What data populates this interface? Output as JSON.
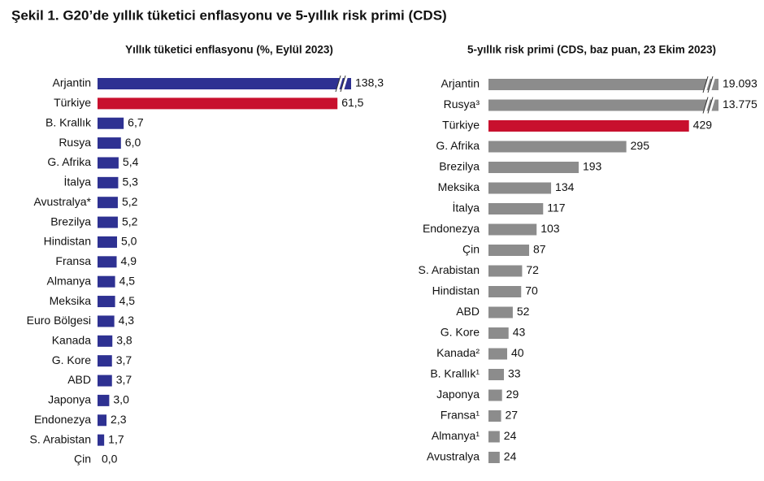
{
  "title": "Şekil 1. G20’de yıllık tüketici enflasyonu ve 5-yıllık risk primi (CDS)",
  "chart_data": [
    {
      "type": "bar",
      "orientation": "horizontal",
      "title": "Yıllık tüketici enflasyonu (%, Eylül 2023)",
      "categories": [
        "Arjantin",
        "Türkiye",
        "B. Krallık",
        "Rusya",
        "G. Afrika",
        "İtalya",
        "Avustralya*",
        "Brezilya",
        "Hindistan",
        "Fransa",
        "Almanya",
        "Meksika",
        "Euro Bölgesi",
        "Kanada",
        "G. Kore",
        "ABD",
        "Japonya",
        "Endonezya",
        "S. Arabistan",
        "Çin"
      ],
      "values": [
        138.3,
        61.5,
        6.7,
        6.0,
        5.4,
        5.3,
        5.2,
        5.2,
        5.0,
        4.9,
        4.5,
        4.5,
        4.3,
        3.8,
        3.7,
        3.7,
        3.0,
        2.3,
        1.7,
        0.0
      ],
      "value_labels": [
        "138,3",
        "61,5",
        "6,7",
        "6,0",
        "5,4",
        "5,3",
        "5,2",
        "5,2",
        "5,0",
        "4,9",
        "4,5",
        "4,5",
        "4,3",
        "3,8",
        "3,7",
        "3,7",
        "3,0",
        "2,3",
        "1,7",
        "0,0"
      ],
      "colors": [
        "#2e3192",
        "#c8102e",
        "#2e3192",
        "#2e3192",
        "#2e3192",
        "#2e3192",
        "#2e3192",
        "#2e3192",
        "#2e3192",
        "#2e3192",
        "#2e3192",
        "#2e3192",
        "#2e3192",
        "#2e3192",
        "#2e3192",
        "#2e3192",
        "#2e3192",
        "#2e3192",
        "#2e3192",
        "#2e3192"
      ]
    },
    {
      "type": "bar",
      "orientation": "horizontal",
      "title": "5-yıllık risk primi (CDS, baz puan, 23 Ekim 2023)",
      "categories": [
        "Arjantin",
        "Rusya³",
        "Türkiye",
        "G. Afrika",
        "Brezilya",
        "Meksika",
        "İtalya",
        "Endonezya",
        "Çin",
        "S. Arabistan",
        "Hindistan",
        "ABD",
        "G. Kore",
        "Kanada²",
        "B. Krallık¹",
        "Japonya",
        "Fransa¹",
        "Almanya¹",
        "Avustralya"
      ],
      "values": [
        19093,
        13775,
        429,
        295,
        193,
        134,
        117,
        103,
        87,
        72,
        70,
        52,
        43,
        40,
        33,
        29,
        27,
        24,
        24
      ],
      "value_labels": [
        "19.093",
        "13.775",
        "429",
        "295",
        "193",
        "134",
        "117",
        "103",
        "87",
        "72",
        "70",
        "52",
        "43",
        "40",
        "33",
        "29",
        "27",
        "24",
        "24"
      ],
      "colors": [
        "#8c8c8c",
        "#8c8c8c",
        "#c8102e",
        "#8c8c8c",
        "#8c8c8c",
        "#8c8c8c",
        "#8c8c8c",
        "#8c8c8c",
        "#8c8c8c",
        "#8c8c8c",
        "#8c8c8c",
        "#8c8c8c",
        "#8c8c8c",
        "#8c8c8c",
        "#8c8c8c",
        "#8c8c8c",
        "#8c8c8c",
        "#8c8c8c",
        "#8c8c8c"
      ]
    }
  ]
}
